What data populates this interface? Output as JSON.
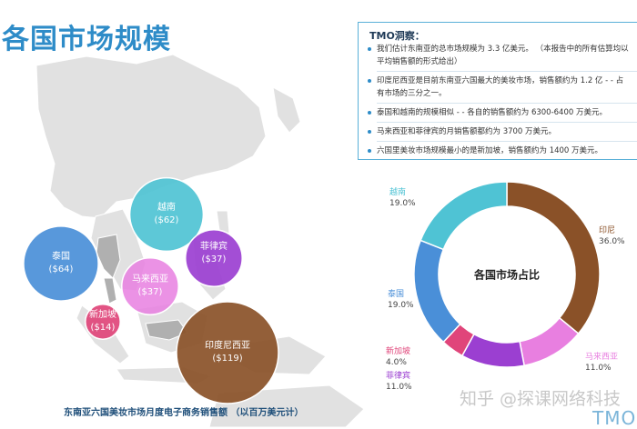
{
  "page": {
    "title": "各国市场规模",
    "map_caption": "东南亚六国美妆市场月度电子商务销售额 （以百万美元计）"
  },
  "bubbles": [
    {
      "country": "越南",
      "value_label": "($62)",
      "value": 62,
      "color": "#4fc3d4"
    },
    {
      "country": "泰国",
      "value_label": "($64)",
      "value": 64,
      "color": "#4a8fd8"
    },
    {
      "country": "菲律宾",
      "value_label": "($37)",
      "value": 37,
      "color": "#9b3fd1"
    },
    {
      "country": "马来西亚",
      "value_label": "($37)",
      "value": 37,
      "color": "#e87fe0"
    },
    {
      "country": "新加坡",
      "value_label": "($14)",
      "value": 14,
      "color": "#e0457a"
    },
    {
      "country": "印度尼西亚",
      "value_label": "($119)",
      "value": 119,
      "color": "#8a5128"
    }
  ],
  "tmo": {
    "heading": "TMO洞察：",
    "items": [
      {
        "lines": [
          "我们估计东南亚的总市场规模为 3.3 亿美元。  （本报告中的所有估算均以",
          "平均销售额的形式给出）"
        ]
      },
      {
        "lines": [
          "印度尼西亚是目前东南亚六国最大的美妆市场，销售额约为 1.2 亿 - - 占",
          "有市场的三分之一。"
        ]
      },
      {
        "lines": [
          "泰国和越南的规模相似 - - 各自的销售额约为 6300-6400 万美元。"
        ]
      },
      {
        "lines": [
          "马来西亚和菲律宾的月销售额都约为 3700 万美元。"
        ]
      },
      {
        "lines": [
          "六国里美妆市场规模最小的是新加坡，销售额约为 1400 万美元。"
        ]
      }
    ]
  },
  "chart_data": [
    {
      "type": "bubble",
      "title": "各国市场规模",
      "caption": "东南亚六国美妆市场月度电子商务销售额 （以百万美元计）",
      "unit": "百万美元",
      "categories": [
        "越南",
        "泰国",
        "菲律宾",
        "马来西亚",
        "新加坡",
        "印度尼西亚"
      ],
      "values": [
        62,
        64,
        37,
        37,
        14,
        119
      ]
    },
    {
      "type": "pie",
      "variant": "donut",
      "title": "各国市场占比",
      "slices": [
        {
          "label": "印尼",
          "pct_label": "36.0%",
          "value": 36.0,
          "color": "#8a5128"
        },
        {
          "label": "马来西亚",
          "pct_label": "11.0%",
          "value": 11.0,
          "color": "#e87fe0"
        },
        {
          "label": "菲律宾",
          "pct_label": "11.0%",
          "value": 11.0,
          "color": "#9b3fd1"
        },
        {
          "label": "新加坡",
          "pct_label": "4.0%",
          "value": 4.0,
          "color": "#e0457a"
        },
        {
          "label": "泰国",
          "pct_label": "19.0%",
          "value": 19.0,
          "color": "#4a8fd8"
        },
        {
          "label": "越南",
          "pct_label": "19.0%",
          "value": 19.0,
          "color": "#4fc3d4"
        }
      ]
    }
  ],
  "watermark": {
    "text": "知乎 @探课网络科技",
    "logo": "TMO"
  },
  "colors": {
    "title": "#2e8cc8",
    "map_land": "#e1e1e1",
    "map_highlight": "#b0b0b0",
    "box_border": "#5ab0d8"
  }
}
